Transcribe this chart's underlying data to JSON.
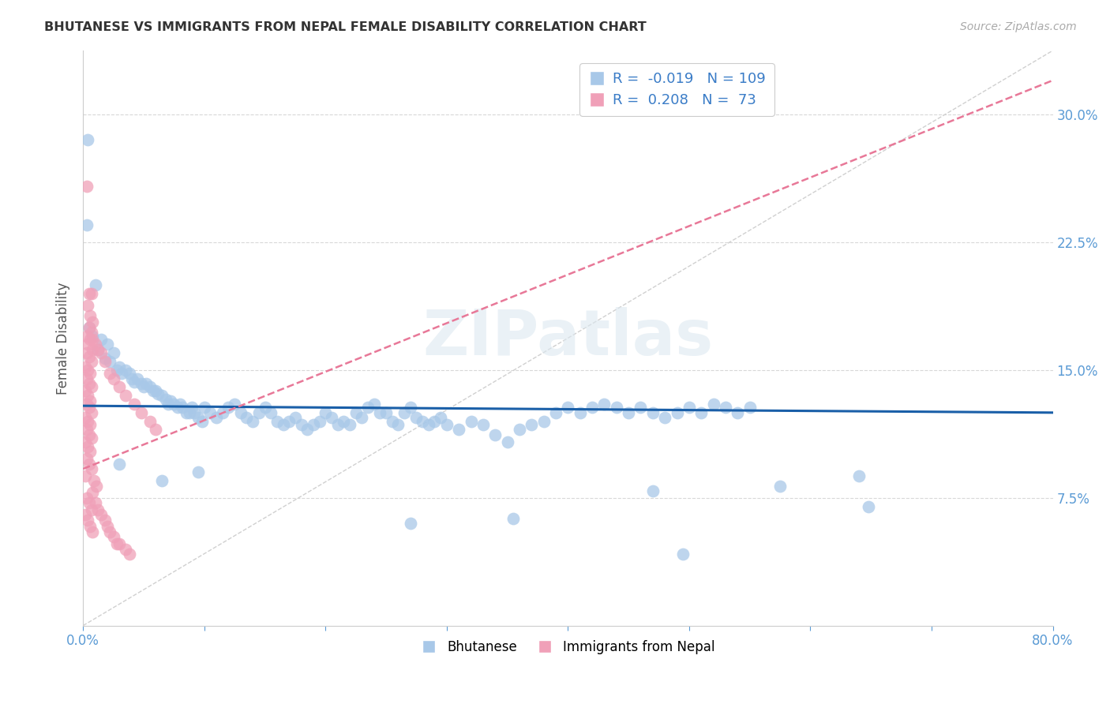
{
  "title": "BHUTANESE VS IMMIGRANTS FROM NEPAL FEMALE DISABILITY CORRELATION CHART",
  "source": "Source: ZipAtlas.com",
  "ylabel": "Female Disability",
  "x_min": 0.0,
  "x_max": 0.8,
  "y_min": 0.0,
  "y_max": 0.3375,
  "y_ticks": [
    0.075,
    0.15,
    0.225,
    0.3
  ],
  "y_tick_labels": [
    "7.5%",
    "15.0%",
    "22.5%",
    "30.0%"
  ],
  "x_ticks": [
    0.0,
    0.1,
    0.2,
    0.3,
    0.4,
    0.5,
    0.6,
    0.7,
    0.8
  ],
  "blue_color": "#a8c8e8",
  "pink_color": "#f0a0b8",
  "blue_line_color": "#1a5fa8",
  "pink_line_color": "#e87898",
  "R_blue": -0.019,
  "N_blue": 109,
  "R_pink": 0.208,
  "N_pink": 73,
  "legend_labels": [
    "Bhutanese",
    "Immigrants from Nepal"
  ],
  "watermark": "ZIPatlas",
  "blue_line_x": [
    0.0,
    0.8
  ],
  "blue_line_y": [
    0.129,
    0.125
  ],
  "pink_line_x": [
    0.0,
    0.8
  ],
  "pink_line_y": [
    0.092,
    0.32
  ],
  "diag_line_x": [
    0.0,
    0.8
  ],
  "diag_line_y": [
    0.0,
    0.3375
  ],
  "blue_scatter": [
    [
      0.004,
      0.285
    ],
    [
      0.003,
      0.235
    ],
    [
      0.01,
      0.2
    ],
    [
      0.005,
      0.175
    ],
    [
      0.008,
      0.17
    ],
    [
      0.015,
      0.168
    ],
    [
      0.02,
      0.165
    ],
    [
      0.012,
      0.162
    ],
    [
      0.025,
      0.16
    ],
    [
      0.018,
      0.157
    ],
    [
      0.022,
      0.155
    ],
    [
      0.03,
      0.152
    ],
    [
      0.028,
      0.15
    ],
    [
      0.035,
      0.15
    ],
    [
      0.032,
      0.148
    ],
    [
      0.038,
      0.148
    ],
    [
      0.04,
      0.145
    ],
    [
      0.042,
      0.143
    ],
    [
      0.045,
      0.145
    ],
    [
      0.048,
      0.142
    ],
    [
      0.05,
      0.14
    ],
    [
      0.052,
      0.142
    ],
    [
      0.055,
      0.14
    ],
    [
      0.058,
      0.138
    ],
    [
      0.06,
      0.138
    ],
    [
      0.062,
      0.136
    ],
    [
      0.065,
      0.135
    ],
    [
      0.068,
      0.133
    ],
    [
      0.07,
      0.13
    ],
    [
      0.072,
      0.132
    ],
    [
      0.075,
      0.13
    ],
    [
      0.078,
      0.128
    ],
    [
      0.08,
      0.13
    ],
    [
      0.082,
      0.128
    ],
    [
      0.085,
      0.125
    ],
    [
      0.088,
      0.125
    ],
    [
      0.09,
      0.128
    ],
    [
      0.092,
      0.125
    ],
    [
      0.095,
      0.122
    ],
    [
      0.098,
      0.12
    ],
    [
      0.1,
      0.128
    ],
    [
      0.105,
      0.125
    ],
    [
      0.11,
      0.122
    ],
    [
      0.115,
      0.125
    ],
    [
      0.12,
      0.128
    ],
    [
      0.125,
      0.13
    ],
    [
      0.13,
      0.125
    ],
    [
      0.135,
      0.122
    ],
    [
      0.14,
      0.12
    ],
    [
      0.145,
      0.125
    ],
    [
      0.15,
      0.128
    ],
    [
      0.155,
      0.125
    ],
    [
      0.16,
      0.12
    ],
    [
      0.165,
      0.118
    ],
    [
      0.17,
      0.12
    ],
    [
      0.175,
      0.122
    ],
    [
      0.18,
      0.118
    ],
    [
      0.185,
      0.115
    ],
    [
      0.19,
      0.118
    ],
    [
      0.195,
      0.12
    ],
    [
      0.2,
      0.125
    ],
    [
      0.205,
      0.122
    ],
    [
      0.21,
      0.118
    ],
    [
      0.215,
      0.12
    ],
    [
      0.22,
      0.118
    ],
    [
      0.225,
      0.125
    ],
    [
      0.23,
      0.122
    ],
    [
      0.235,
      0.128
    ],
    [
      0.24,
      0.13
    ],
    [
      0.245,
      0.125
    ],
    [
      0.25,
      0.125
    ],
    [
      0.255,
      0.12
    ],
    [
      0.26,
      0.118
    ],
    [
      0.265,
      0.125
    ],
    [
      0.27,
      0.128
    ],
    [
      0.275,
      0.122
    ],
    [
      0.28,
      0.12
    ],
    [
      0.285,
      0.118
    ],
    [
      0.29,
      0.12
    ],
    [
      0.295,
      0.122
    ],
    [
      0.3,
      0.118
    ],
    [
      0.31,
      0.115
    ],
    [
      0.32,
      0.12
    ],
    [
      0.33,
      0.118
    ],
    [
      0.34,
      0.112
    ],
    [
      0.35,
      0.108
    ],
    [
      0.36,
      0.115
    ],
    [
      0.37,
      0.118
    ],
    [
      0.38,
      0.12
    ],
    [
      0.39,
      0.125
    ],
    [
      0.4,
      0.128
    ],
    [
      0.41,
      0.125
    ],
    [
      0.42,
      0.128
    ],
    [
      0.43,
      0.13
    ],
    [
      0.44,
      0.128
    ],
    [
      0.45,
      0.125
    ],
    [
      0.46,
      0.128
    ],
    [
      0.47,
      0.125
    ],
    [
      0.48,
      0.122
    ],
    [
      0.49,
      0.125
    ],
    [
      0.5,
      0.128
    ],
    [
      0.51,
      0.125
    ],
    [
      0.52,
      0.13
    ],
    [
      0.53,
      0.128
    ],
    [
      0.54,
      0.125
    ],
    [
      0.55,
      0.128
    ],
    [
      0.03,
      0.095
    ],
    [
      0.065,
      0.085
    ],
    [
      0.095,
      0.09
    ],
    [
      0.27,
      0.06
    ],
    [
      0.355,
      0.063
    ],
    [
      0.47,
      0.079
    ],
    [
      0.495,
      0.042
    ],
    [
      0.575,
      0.082
    ],
    [
      0.64,
      0.088
    ],
    [
      0.648,
      0.07
    ]
  ],
  "pink_scatter": [
    [
      0.003,
      0.258
    ],
    [
      0.005,
      0.195
    ],
    [
      0.007,
      0.195
    ],
    [
      0.004,
      0.188
    ],
    [
      0.006,
      0.182
    ],
    [
      0.008,
      0.178
    ],
    [
      0.005,
      0.175
    ],
    [
      0.007,
      0.172
    ],
    [
      0.003,
      0.17
    ],
    [
      0.006,
      0.168
    ],
    [
      0.004,
      0.165
    ],
    [
      0.008,
      0.162
    ],
    [
      0.003,
      0.16
    ],
    [
      0.005,
      0.158
    ],
    [
      0.007,
      0.155
    ],
    [
      0.002,
      0.152
    ],
    [
      0.004,
      0.15
    ],
    [
      0.006,
      0.148
    ],
    [
      0.003,
      0.145
    ],
    [
      0.005,
      0.142
    ],
    [
      0.007,
      0.14
    ],
    [
      0.002,
      0.138
    ],
    [
      0.004,
      0.135
    ],
    [
      0.006,
      0.132
    ],
    [
      0.003,
      0.13
    ],
    [
      0.005,
      0.128
    ],
    [
      0.007,
      0.125
    ],
    [
      0.002,
      0.122
    ],
    [
      0.004,
      0.12
    ],
    [
      0.006,
      0.118
    ],
    [
      0.003,
      0.115
    ],
    [
      0.005,
      0.112
    ],
    [
      0.007,
      0.11
    ],
    [
      0.002,
      0.108
    ],
    [
      0.004,
      0.105
    ],
    [
      0.006,
      0.102
    ],
    [
      0.003,
      0.098
    ],
    [
      0.005,
      0.095
    ],
    [
      0.007,
      0.092
    ],
    [
      0.002,
      0.088
    ],
    [
      0.009,
      0.085
    ],
    [
      0.011,
      0.082
    ],
    [
      0.008,
      0.078
    ],
    [
      0.003,
      0.075
    ],
    [
      0.005,
      0.072
    ],
    [
      0.007,
      0.068
    ],
    [
      0.002,
      0.065
    ],
    [
      0.004,
      0.062
    ],
    [
      0.006,
      0.058
    ],
    [
      0.008,
      0.055
    ],
    [
      0.01,
      0.072
    ],
    [
      0.012,
      0.068
    ],
    [
      0.015,
      0.065
    ],
    [
      0.018,
      0.062
    ],
    [
      0.02,
      0.058
    ],
    [
      0.022,
      0.055
    ],
    [
      0.025,
      0.052
    ],
    [
      0.028,
      0.048
    ],
    [
      0.03,
      0.048
    ],
    [
      0.035,
      0.045
    ],
    [
      0.038,
      0.042
    ],
    [
      0.015,
      0.16
    ],
    [
      0.018,
      0.155
    ],
    [
      0.022,
      0.148
    ],
    [
      0.025,
      0.145
    ],
    [
      0.03,
      0.14
    ],
    [
      0.035,
      0.135
    ],
    [
      0.042,
      0.13
    ],
    [
      0.048,
      0.125
    ],
    [
      0.055,
      0.12
    ],
    [
      0.06,
      0.115
    ],
    [
      0.008,
      0.168
    ],
    [
      0.01,
      0.165
    ],
    [
      0.012,
      0.162
    ]
  ]
}
